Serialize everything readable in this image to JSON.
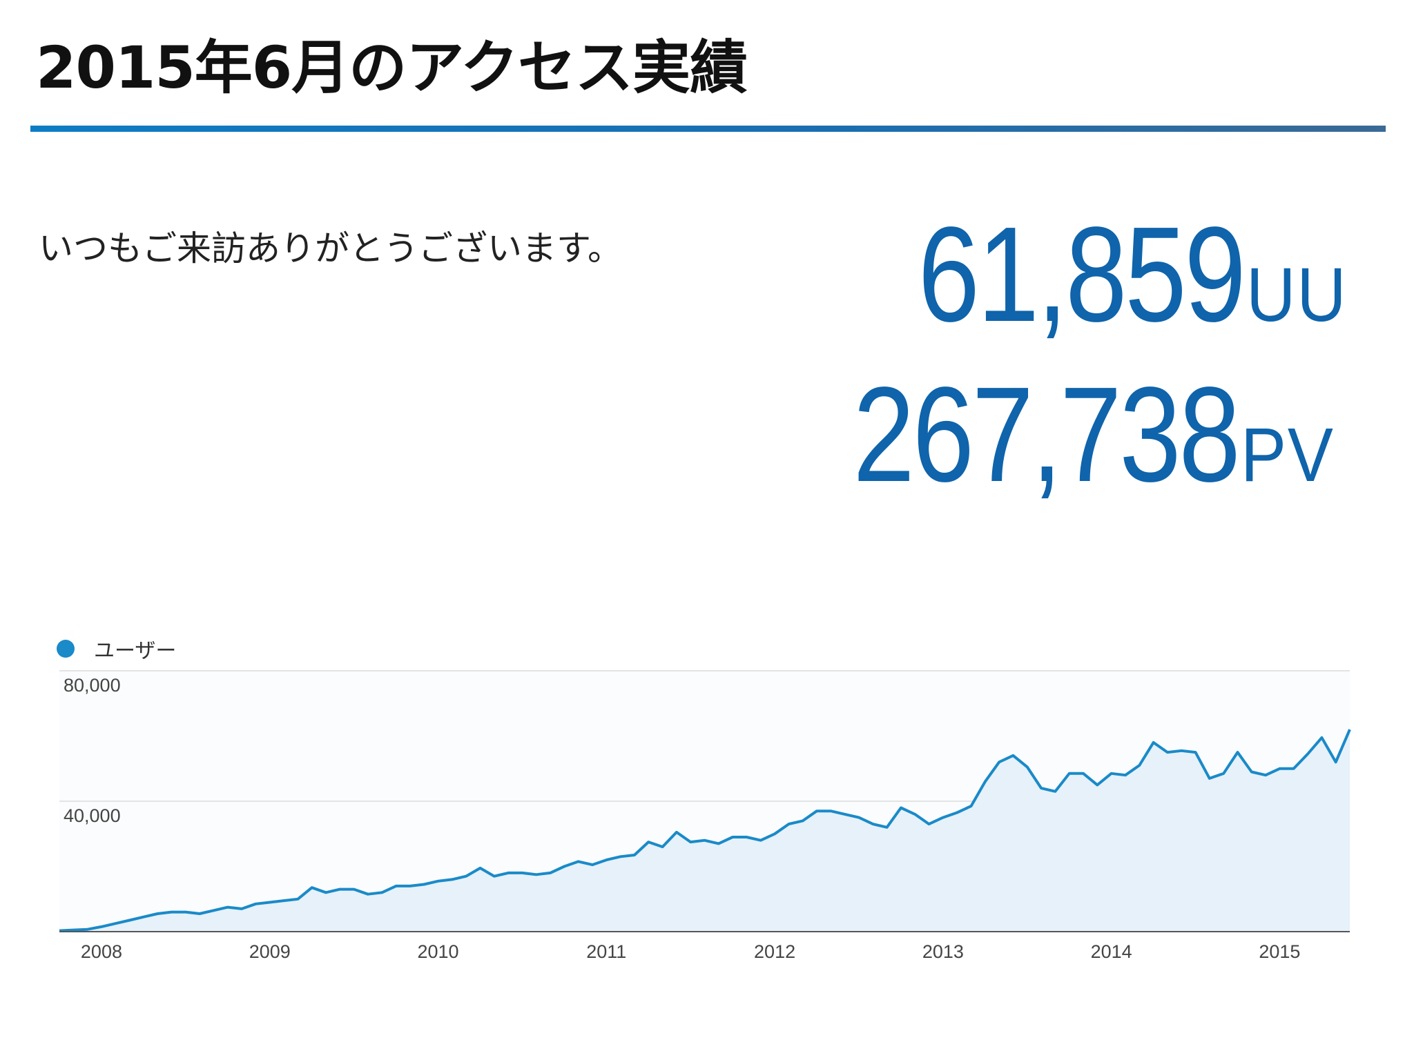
{
  "header": {
    "title": "2015年6月のアクセス実績"
  },
  "greeting": "いつもご来訪ありがとうございます。",
  "stats": {
    "uu_value": "61,859",
    "uu_unit": "UU",
    "pv_value": "267,738",
    "pv_unit": "PV"
  },
  "colors": {
    "accent": "#0f64ab",
    "rule": "#0e7cc4",
    "series": "#1a8ac8",
    "fill": "#e6f1fa"
  },
  "chart_data": {
    "type": "area",
    "grid": true,
    "legend_position": "top-left",
    "ylim": [
      0,
      80000
    ],
    "y_ticks": [
      "80,000",
      "40,000"
    ],
    "y_tick_values": [
      80000,
      40000
    ],
    "x_tick_labels": [
      "2008",
      "2009",
      "2010",
      "2011",
      "2012",
      "2013",
      "2014",
      "2015"
    ],
    "x_start": "2007-10",
    "x_end": "2015-06",
    "series": [
      {
        "name": "ユーザー",
        "values": [
          300,
          500,
          700,
          1500,
          2500,
          3500,
          4500,
          5500,
          6000,
          6000,
          5500,
          6500,
          7500,
          7000,
          8500,
          9000,
          9500,
          10000,
          13500,
          12000,
          13000,
          13000,
          11500,
          12000,
          14000,
          14000,
          14500,
          15500,
          16000,
          17000,
          19500,
          17000,
          18000,
          18000,
          17500,
          18000,
          20000,
          21500,
          20500,
          22000,
          23000,
          23500,
          27500,
          26000,
          30500,
          27500,
          28000,
          27000,
          29000,
          29000,
          28000,
          30000,
          33000,
          34000,
          37000,
          37000,
          36000,
          35000,
          33000,
          32000,
          38000,
          36000,
          33000,
          35000,
          36500,
          38500,
          46000,
          52000,
          54000,
          50500,
          44000,
          43000,
          48500,
          48500,
          45000,
          48500,
          48000,
          51000,
          58000,
          55000,
          55500,
          55000,
          47000,
          48500,
          55000,
          49000,
          48000,
          50000,
          50000,
          54500,
          59500,
          52000,
          62000
        ]
      }
    ]
  }
}
